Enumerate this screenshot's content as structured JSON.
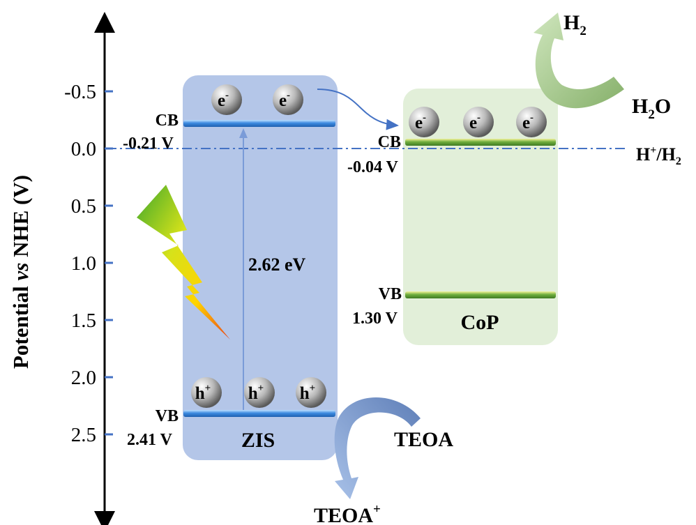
{
  "axis": {
    "label": "Potential vs NHE (V)",
    "label_prefix": "Potential ",
    "label_italic": "vs",
    "label_suffix": " NHE (V)",
    "ticks": [
      "-0.5",
      "0.0",
      "0.5",
      "1.0",
      "1.5",
      "2.0",
      "2.5"
    ]
  },
  "zis": {
    "name": "ZIS",
    "cb_label": "CB",
    "cb_value": "-0.21 V",
    "vb_label": "VB",
    "vb_value": "2.41 V",
    "band_gap": "2.62 eV",
    "electron": "e",
    "electron_sup": "-",
    "hole": "h",
    "hole_sup": "+"
  },
  "cop": {
    "name": "CoP",
    "cb_label": "CB",
    "cb_value": "-0.04 V",
    "vb_label": "VB",
    "vb_value": "1.30 V",
    "electron": "e",
    "electron_sup": "-"
  },
  "reference": {
    "label": "H⁺/H₂",
    "potential": 0.0
  },
  "reaction_h2": {
    "reactant": "H₂O",
    "product": "H₂"
  },
  "reaction_teoa": {
    "reactant": "TEOA",
    "product": "TEOA⁺"
  },
  "colors": {
    "zis_box": "#b4c6e8",
    "cop_box": "#e2efd9",
    "zis_band": "#4a8fe0",
    "cop_band": "#5fa63a",
    "dash_line": "#4472c4",
    "h2_arrow": "#a9cf8c",
    "teoa_arrow": "#7a9bd0"
  }
}
